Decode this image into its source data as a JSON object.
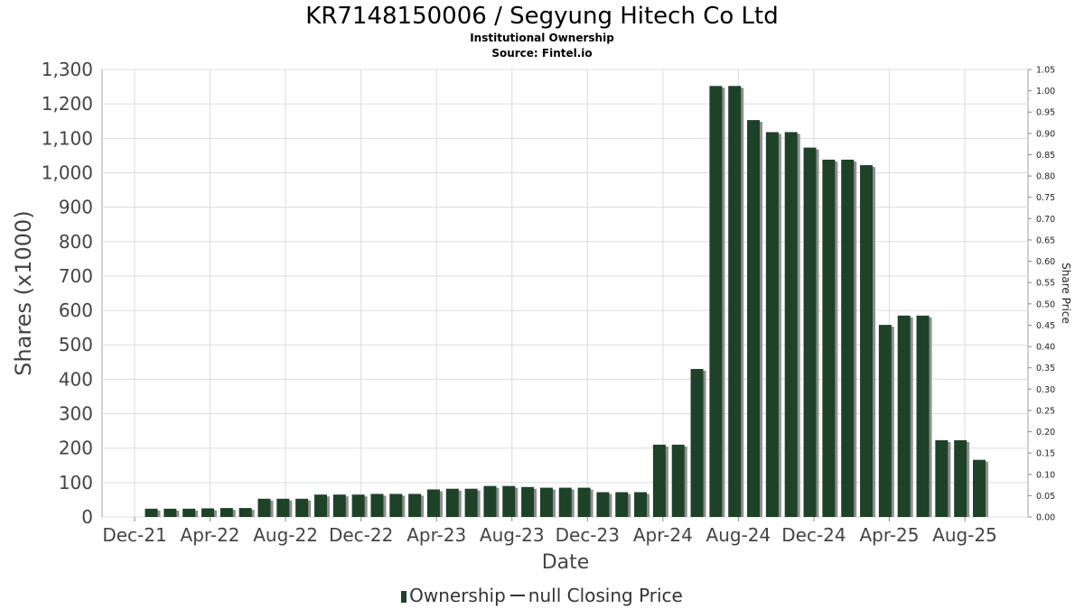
{
  "header": {
    "title": "KR7148150006 / Segyung Hitech Co Ltd",
    "subtitle": "Institutional Ownership",
    "source": "Source: Fintel.io"
  },
  "legend": {
    "ownership_label": "Ownership",
    "closing_price_label": "null Closing Price"
  },
  "colors": {
    "bar": "#1e4228",
    "bar_shadow": "#8f8f8f",
    "grid": "#dcdcdc",
    "axis_text": "#444444"
  },
  "chart_data": {
    "type": "bar",
    "xlabel": "Date",
    "ylabel": "Shares (x1000)",
    "y2label": "Share Price",
    "ylim": [
      0,
      1300
    ],
    "y2lim": [
      0,
      1.05
    ],
    "grid": true,
    "legend_position": "bottom",
    "x_tick_labels": [
      "Dec-21",
      "Apr-22",
      "Aug-22",
      "Dec-22",
      "Apr-23",
      "Aug-23",
      "Dec-23",
      "Apr-24",
      "Aug-24",
      "Dec-24",
      "Apr-25",
      "Aug-25"
    ],
    "y_tick_labels": [
      "0",
      "100",
      "200",
      "300",
      "400",
      "500",
      "600",
      "700",
      "800",
      "900",
      "1,000",
      "1,100",
      "1,200",
      "1,300"
    ],
    "y2_tick_labels": [
      "0.00",
      "0.05",
      "0.10",
      "0.15",
      "0.20",
      "0.25",
      "0.30",
      "0.35",
      "0.40",
      "0.45",
      "0.50",
      "0.55",
      "0.60",
      "0.65",
      "0.70",
      "0.75",
      "0.80",
      "0.85",
      "0.90",
      "0.95",
      "1.00",
      "1.05"
    ],
    "series": [
      {
        "name": "Ownership",
        "values": [
          24,
          24,
          24,
          25,
          26,
          26,
          53,
          53,
          53,
          65,
          65,
          65,
          67,
          67,
          67,
          80,
          82,
          82,
          90,
          90,
          87,
          85,
          85,
          85,
          72,
          72,
          72,
          210,
          210,
          430,
          1252,
          1252,
          1153,
          1118,
          1118,
          1073,
          1038,
          1038,
          1022,
          558,
          585,
          585,
          223,
          223,
          166
        ]
      },
      {
        "name": "null Closing Price",
        "values": []
      }
    ]
  }
}
